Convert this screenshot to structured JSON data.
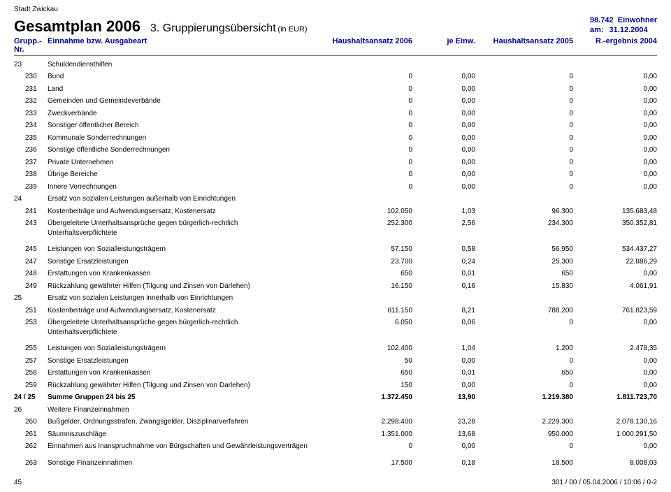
{
  "meta": {
    "stadt": "Stadt Zwickau",
    "title": "Gesamtplan 2006",
    "subtitle": "3. Gruppierungsübersicht",
    "currency_note": "(in EUR)",
    "population": "98.742",
    "population_label": "Einwohner",
    "date_label": "am:",
    "date": "31.12.2004",
    "page_number": "45",
    "footer_right": "301 / 00 / 05.04.2006 / 10:06 / 0-2"
  },
  "columns": {
    "nr": "Grupp.-Nr.",
    "name": "Einnahme bzw. Ausgabeart",
    "c1": "Haushaltsansatz 2006",
    "c2": "je Einw.",
    "c3": "Haushaltsansatz 2005",
    "c4": "R.-ergebnis 2004"
  },
  "rows": [
    {
      "level": 0,
      "nr": "23",
      "name": "Schuldendiensthilfen"
    },
    {
      "level": 1,
      "nr": "230",
      "name": "Bund",
      "v1": "0",
      "v2": "0,00",
      "v3": "0",
      "v4": "0,00"
    },
    {
      "level": 1,
      "nr": "231",
      "name": "Land",
      "v1": "0",
      "v2": "0,00",
      "v3": "0",
      "v4": "0,00"
    },
    {
      "level": 1,
      "nr": "232",
      "name": "Gemeinden und Gemeindeverbände",
      "v1": "0",
      "v2": "0,00",
      "v3": "0",
      "v4": "0,00"
    },
    {
      "level": 1,
      "nr": "233",
      "name": "Zweckverbände",
      "v1": "0",
      "v2": "0,00",
      "v3": "0",
      "v4": "0,00"
    },
    {
      "level": 1,
      "nr": "234",
      "name": "Sonstiger öffentlicher Bereich",
      "v1": "0",
      "v2": "0,00",
      "v3": "0",
      "v4": "0,00"
    },
    {
      "level": 1,
      "nr": "235",
      "name": "Kommunale Sonderrechnungen",
      "v1": "0",
      "v2": "0,00",
      "v3": "0",
      "v4": "0,00"
    },
    {
      "level": 1,
      "nr": "236",
      "name": "Sonstige öffentliche Sonderrechnungen",
      "v1": "0",
      "v2": "0,00",
      "v3": "0",
      "v4": "0,00"
    },
    {
      "level": 1,
      "nr": "237",
      "name": "Private Unternehmen",
      "v1": "0",
      "v2": "0,00",
      "v3": "0",
      "v4": "0,00"
    },
    {
      "level": 1,
      "nr": "238",
      "name": "Übrige Bereiche",
      "v1": "0",
      "v2": "0,00",
      "v3": "0",
      "v4": "0,00"
    },
    {
      "level": 1,
      "nr": "239",
      "name": "Innere Verrechnungen",
      "v1": "0",
      "v2": "0,00",
      "v3": "0",
      "v4": "0,00"
    },
    {
      "level": 0,
      "nr": "24",
      "name": "Ersatz von sozialen Leistungen außerhalb von Einrichtungen"
    },
    {
      "level": 1,
      "nr": "241",
      "name": "Kostenbeiträge und Aufwendungsersatz, Kostenersatz",
      "v1": "102.050",
      "v2": "1,03",
      "v3": "96.300",
      "v4": "135.683,48"
    },
    {
      "level": 1,
      "nr": "243",
      "name": "Übergeleitete Unterhaltsansprüche gegen bürgerlich-rechtlich Unterhaltsverpflichtete",
      "v1": "252.300",
      "v2": "2,56",
      "v3": "234.300",
      "v4": "350.352,81"
    },
    {
      "level": 1,
      "nr": "245",
      "name": "Leistungen von Sozialleistungsträgern",
      "v1": "57.150",
      "v2": "0,58",
      "v3": "56.950",
      "v4": "534.437,27",
      "space": true
    },
    {
      "level": 1,
      "nr": "247",
      "name": "Sonstige Ersatzleistungen",
      "v1": "23.700",
      "v2": "0,24",
      "v3": "25.300",
      "v4": "22.886,29"
    },
    {
      "level": 1,
      "nr": "248",
      "name": "Erstattungen von Krankenkassen",
      "v1": "650",
      "v2": "0,01",
      "v3": "650",
      "v4": "0,00"
    },
    {
      "level": 1,
      "nr": "249",
      "name": "Rückzahlung gewährter Hilfen (Tilgung und Zinsen von Darlehen)",
      "v1": "16.150",
      "v2": "0,16",
      "v3": "15.830",
      "v4": "4.061,91"
    },
    {
      "level": 0,
      "nr": "25",
      "name": "Ersatz von sozialen Leistungen innerhalb von Einrichtungen"
    },
    {
      "level": 1,
      "nr": "251",
      "name": "Kostenbeiträge und Aufwendungsersatz, Kostenersatz",
      "v1": "811.150",
      "v2": "8,21",
      "v3": "788.200",
      "v4": "761.823,59"
    },
    {
      "level": 1,
      "nr": "253",
      "name": "Übergeleitete Unterhaltsansprüche gegen bürgerlich-rechtlich Unterhaltsverpflichtete",
      "v1": "6.050",
      "v2": "0,06",
      "v3": "0",
      "v4": "0,00"
    },
    {
      "level": 1,
      "nr": "255",
      "name": "Leistungen von Sozialleistungsträgern",
      "v1": "102.400",
      "v2": "1,04",
      "v3": "1.200",
      "v4": "2.478,35",
      "space": true
    },
    {
      "level": 1,
      "nr": "257",
      "name": "Sonstige Ersatzleistungen",
      "v1": "50",
      "v2": "0,00",
      "v3": "0",
      "v4": "0,00"
    },
    {
      "level": 1,
      "nr": "258",
      "name": "Erstattungen von Krankenkassen",
      "v1": "650",
      "v2": "0,01",
      "v3": "650",
      "v4": "0,00"
    },
    {
      "level": 1,
      "nr": "259",
      "name": "Rückzahlung gewährter Hilfen (Tilgung und Zinsen von Darlehen)",
      "v1": "150",
      "v2": "0,00",
      "v3": "0",
      "v4": "0,00"
    },
    {
      "level": 0,
      "nr": "24 / 25",
      "name": "Summe Gruppen 24 bis 25",
      "v1": "1.372.450",
      "v2": "13,90",
      "v3": "1.219.380",
      "v4": "1.811.723,70",
      "bold": true
    },
    {
      "level": 0,
      "nr": "26",
      "name": "Weitere Finanzeinnahmen"
    },
    {
      "level": 1,
      "nr": "260",
      "name": "Bußgelder, Ordnungsstrafen, Zwangsgelder, Disziplinarverfahren",
      "v1": "2.298.400",
      "v2": "23,28",
      "v3": "2.229.300",
      "v4": "2.078.130,16"
    },
    {
      "level": 1,
      "nr": "261",
      "name": "Säumniszuschläge",
      "v1": "1.351.000",
      "v2": "13,68",
      "v3": "950.000",
      "v4": "1.000.291,50"
    },
    {
      "level": 1,
      "nr": "262",
      "name": "Einnahmen aus Inanspruchnahme von Bürgschaften und Gewährleistungsverträgen",
      "v1": "0",
      "v2": "0,00",
      "v3": "0",
      "v4": "0,00"
    },
    {
      "level": 1,
      "nr": "263",
      "name": "Sonstige Finanzeinnahmen",
      "v1": "17.500",
      "v2": "0,18",
      "v3": "18.500",
      "v4": "8.008,03",
      "space": true
    }
  ],
  "colors": {
    "header_blue": "#000080",
    "text": "#000000",
    "rule": "#7a7a7a"
  }
}
